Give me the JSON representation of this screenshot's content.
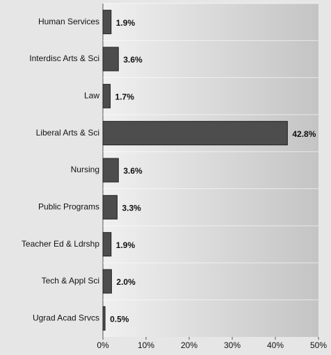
{
  "chart_data": {
    "type": "barh",
    "categories": [
      "Human Services",
      "Interdisc Arts & Sci",
      "Law",
      "Liberal Arts & Sci",
      "Nursing",
      "Public Programs",
      "Teacher Ed & Ldrshp",
      "Tech & Appl Sci",
      "Ugrad Acad Srvcs"
    ],
    "values": [
      1.9,
      3.6,
      1.7,
      42.8,
      3.6,
      3.3,
      1.9,
      2.0,
      0.5
    ],
    "value_labels": [
      "1.9%",
      "3.6%",
      "1.7%",
      "42.8%",
      "3.6%",
      "3.3%",
      "1.9%",
      "2.0%",
      "0.5%"
    ],
    "color": "#4d4d4d",
    "xlim": [
      0,
      50
    ],
    "xticks": [
      {
        "value": 0,
        "label": "0%"
      },
      {
        "value": 10,
        "label": "10%"
      },
      {
        "value": 20,
        "label": "20%"
      },
      {
        "value": 30,
        "label": "30%"
      },
      {
        "value": 40,
        "label": "40%"
      },
      {
        "value": 50,
        "label": "50%"
      }
    ]
  }
}
